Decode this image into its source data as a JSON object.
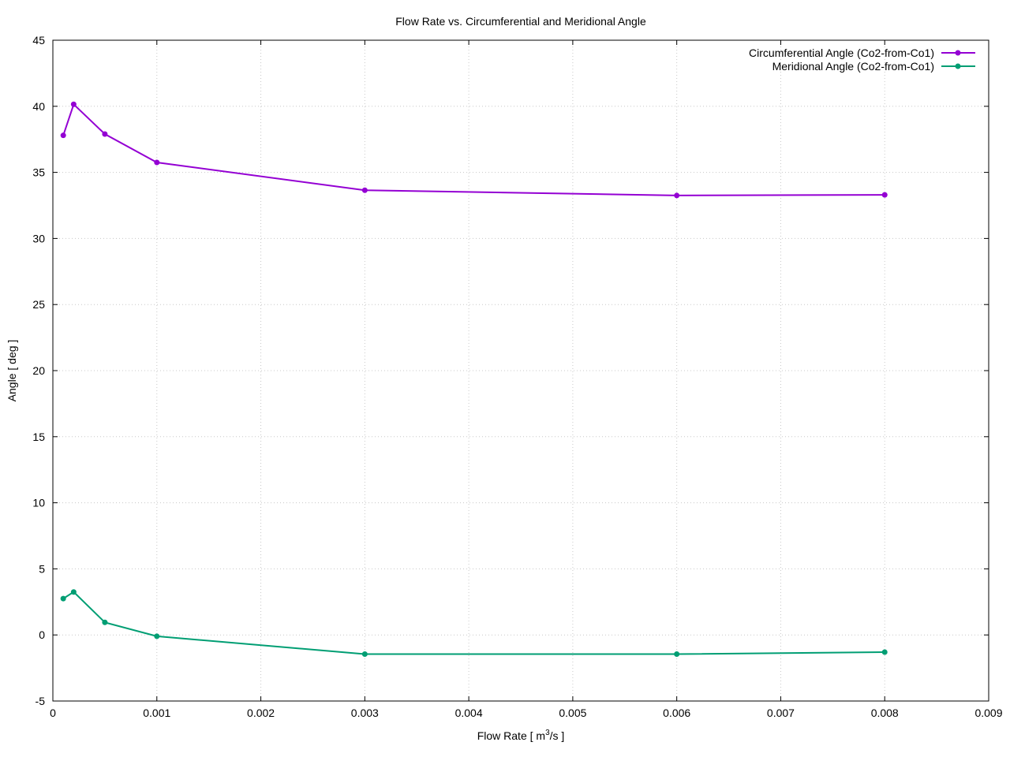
{
  "chart_data": {
    "type": "line",
    "title": "Flow Rate vs. Circumferential and Meridional Angle",
    "xlabel_main": "Flow Rate [ m",
    "xlabel_sup": "3",
    "xlabel_tail": "/s ]",
    "ylabel": "Angle [ deg ]",
    "xlim": [
      0,
      0.009
    ],
    "ylim": [
      -5,
      45
    ],
    "x_ticks": [
      "0",
      "0.001",
      "0.002",
      "0.003",
      "0.004",
      "0.005",
      "0.006",
      "0.007",
      "0.008",
      "0.009"
    ],
    "y_ticks": [
      "-5",
      "0",
      "5",
      "10",
      "15",
      "20",
      "25",
      "30",
      "35",
      "40",
      "45"
    ],
    "grid": true,
    "legend_position": "top-right",
    "series": [
      {
        "name": "Circumferential Angle (Co2-from-Co1)",
        "color": "#9400d3",
        "x": [
          0.0001,
          0.0002,
          0.0005,
          0.001,
          0.003,
          0.006,
          0.008
        ],
        "y": [
          37.8,
          40.15,
          37.9,
          35.75,
          33.65,
          33.25,
          33.3
        ]
      },
      {
        "name": "Meridional Angle (Co2-from-Co1)",
        "color": "#009e73",
        "x": [
          0.0001,
          0.0002,
          0.0005,
          0.001,
          0.003,
          0.006,
          0.008
        ],
        "y": [
          2.75,
          3.25,
          0.95,
          -0.1,
          -1.45,
          -1.45,
          -1.3
        ]
      }
    ]
  }
}
